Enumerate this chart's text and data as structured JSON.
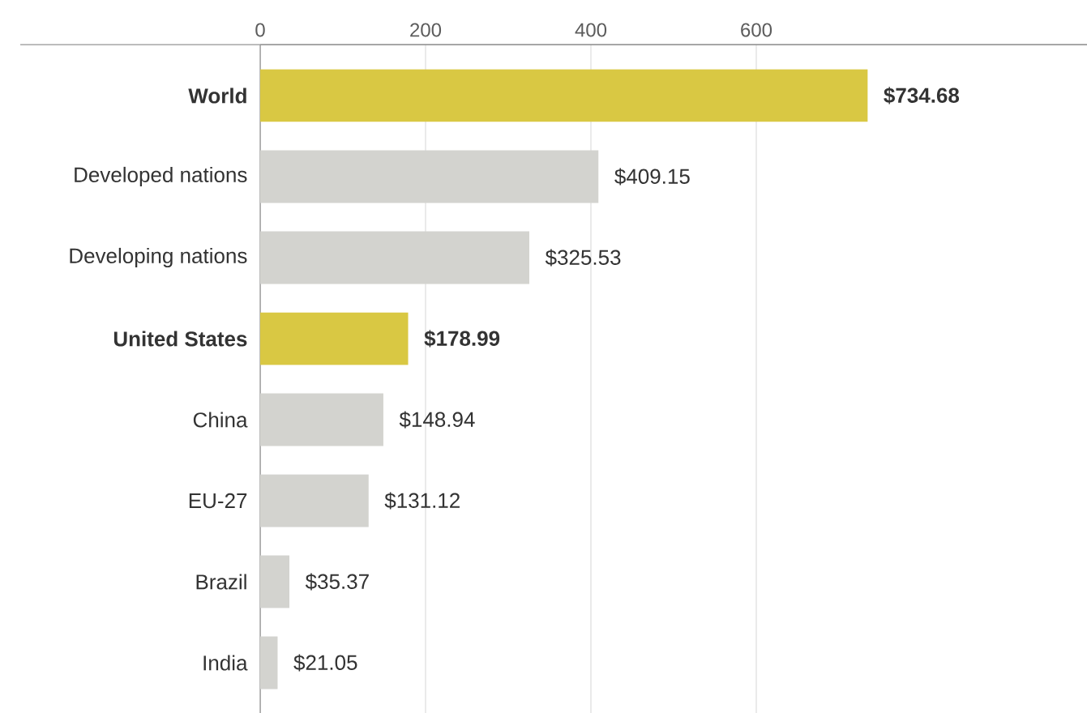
{
  "chart_data": {
    "type": "bar",
    "orientation": "horizontal",
    "categories": [
      "World",
      "Developed nations",
      "Developing nations",
      "United States",
      "China",
      "EU-27",
      "Brazil",
      "India"
    ],
    "values": [
      734.68,
      409.15,
      325.53,
      178.99,
      148.94,
      131.12,
      35.37,
      21.05
    ],
    "value_labels": [
      "$734.68",
      "$409.15",
      "$325.53",
      "$178.99",
      "$148.94",
      "$131.12",
      "$35.37",
      "$21.05"
    ],
    "colors": [
      "#d9c843",
      "#d3d3cf",
      "#d3d3cf",
      "#d9c843",
      "#d3d3cf",
      "#d3d3cf",
      "#d3d3cf",
      "#d3d3cf"
    ],
    "xlim": [
      0,
      1000
    ],
    "xticks": [
      0,
      200,
      400,
      600
    ],
    "grid": "x"
  }
}
